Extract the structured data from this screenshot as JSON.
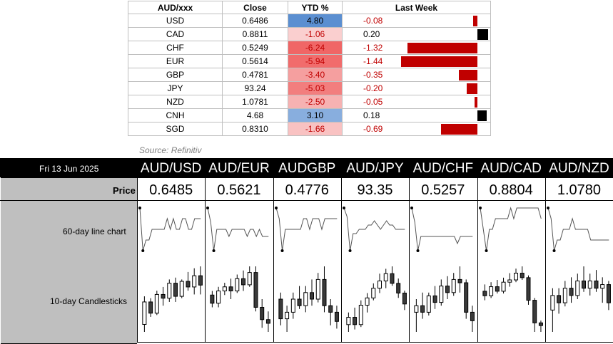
{
  "table": {
    "headers": [
      "AUD/xxx",
      "Close",
      "YTD %",
      "Last Week"
    ],
    "rows": [
      {
        "ccy": "USD",
        "close": "0.6486",
        "ytd": "4.80",
        "ytd_num": 4.8,
        "last_week": "-0.08",
        "lw_num": -0.08
      },
      {
        "ccy": "CAD",
        "close": "0.8811",
        "ytd": "-1.06",
        "ytd_num": -1.06,
        "last_week": "0.20",
        "lw_num": 0.2
      },
      {
        "ccy": "CHF",
        "close": "0.5249",
        "ytd": "-6.24",
        "ytd_num": -6.24,
        "last_week": "-1.32",
        "lw_num": -1.32
      },
      {
        "ccy": "EUR",
        "close": "0.5614",
        "ytd": "-5.94",
        "ytd_num": -5.94,
        "last_week": "-1.44",
        "lw_num": -1.44
      },
      {
        "ccy": "GBP",
        "close": "0.4781",
        "ytd": "-3.40",
        "ytd_num": -3.4,
        "last_week": "-0.35",
        "lw_num": -0.35
      },
      {
        "ccy": "JPY",
        "close": "93.24",
        "ytd": "-5.03",
        "ytd_num": -5.03,
        "last_week": "-0.20",
        "lw_num": -0.2
      },
      {
        "ccy": "NZD",
        "close": "1.0781",
        "ytd": "-2.50",
        "ytd_num": -2.5,
        "last_week": "-0.05",
        "lw_num": -0.05
      },
      {
        "ccy": "CNH",
        "close": "4.68",
        "ytd": "3.10",
        "ytd_num": 3.1,
        "last_week": "0.18",
        "lw_num": 0.18
      },
      {
        "ccy": "SGD",
        "close": "0.8310",
        "ytd": "-1.66",
        "ytd_num": -1.66,
        "last_week": "-0.69",
        "lw_num": -0.69
      }
    ]
  },
  "source": "Source: Refinitiv",
  "date": "Fri 13 Jun 2025",
  "labels": {
    "price": "Price",
    "line": "60-day line chart",
    "candles": "10-day Candlesticks"
  },
  "pairs": [
    {
      "name": "AUD/USD",
      "price": "0.6485"
    },
    {
      "name": "AUD/EUR",
      "price": "0.5621"
    },
    {
      "name": "AUDGBP",
      "price": "0.4776"
    },
    {
      "name": "AUD/JPY",
      "price": "93.35"
    },
    {
      "name": "AUD/CHF",
      "price": "0.5257"
    },
    {
      "name": "AUD/CAD",
      "price": "0.8804"
    },
    {
      "name": "AUD/NZD",
      "price": "1.0780"
    }
  ],
  "colors": {
    "positive_ytd": "#5b8fd1",
    "negative_ytd": "#f06666",
    "negative_bar": "#c00000",
    "positive_bar": "#000000",
    "negative_text": "#c00000"
  },
  "chart_data": [
    {
      "type": "table",
      "title": "",
      "columns": [
        "AUD/xxx",
        "Close",
        "YTD %",
        "Last Week"
      ],
      "categories": [
        "USD",
        "CAD",
        "CHF",
        "EUR",
        "GBP",
        "JPY",
        "NZD",
        "CNH",
        "SGD"
      ],
      "series": [
        {
          "name": "YTD %",
          "values": [
            4.8,
            -1.06,
            -6.24,
            -5.94,
            -3.4,
            -5.03,
            -2.5,
            3.1,
            -1.66
          ]
        },
        {
          "name": "Last Week",
          "values": [
            -0.08,
            0.2,
            -1.32,
            -1.44,
            -0.35,
            -0.2,
            -0.05,
            0.18,
            -0.69
          ]
        }
      ]
    },
    {
      "type": "line",
      "title": "",
      "series": [
        {
          "name": "AUD/USD",
          "values": [
            0.66,
            0.62,
            0.63,
            0.63,
            0.64,
            0.64,
            0.64,
            0.64,
            0.64,
            0.65,
            0.64,
            0.65,
            0.64,
            0.64,
            0.65,
            0.65,
            0.64,
            0.64,
            0.65,
            0.65,
            0.65
          ]
        },
        {
          "name": "AUD/EUR",
          "values": [
            0.6,
            0.58,
            0.54,
            0.57,
            0.57,
            0.57,
            0.57,
            0.56,
            0.57,
            0.57,
            0.57,
            0.57,
            0.57,
            0.56,
            0.57,
            0.57,
            0.56,
            0.57,
            0.56,
            0.56,
            0.56
          ]
        },
        {
          "name": "AUDGBP",
          "values": [
            0.49,
            0.48,
            0.45,
            0.47,
            0.47,
            0.47,
            0.47,
            0.47,
            0.47,
            0.48,
            0.48,
            0.47,
            0.48,
            0.48,
            0.48,
            0.47,
            0.48,
            0.48,
            0.48,
            0.48,
            0.48
          ]
        },
        {
          "name": "AUD/JPY",
          "values": [
            98,
            96,
            88,
            92,
            92,
            93,
            93,
            93,
            94,
            94,
            95,
            94,
            93,
            94,
            95,
            94,
            94,
            93,
            93,
            93,
            93
          ]
        },
        {
          "name": "AUD/CHF",
          "values": [
            0.57,
            0.55,
            0.51,
            0.53,
            0.53,
            0.53,
            0.53,
            0.53,
            0.53,
            0.53,
            0.53,
            0.53,
            0.53,
            0.53,
            0.53,
            0.52,
            0.53,
            0.53,
            0.53,
            0.53,
            0.53
          ]
        },
        {
          "name": "AUD/CAD",
          "values": [
            0.89,
            0.87,
            0.85,
            0.87,
            0.87,
            0.88,
            0.88,
            0.88,
            0.88,
            0.88,
            0.89,
            0.88,
            0.89,
            0.89,
            0.89,
            0.89,
            0.89,
            0.89,
            0.89,
            0.89,
            0.88
          ]
        },
        {
          "name": "AUD/NZD",
          "values": [
            1.11,
            1.1,
            1.07,
            1.08,
            1.08,
            1.09,
            1.09,
            1.09,
            1.1,
            1.09,
            1.09,
            1.09,
            1.09,
            1.09,
            1.08,
            1.08,
            1.08,
            1.08,
            1.08,
            1.08,
            1.08
          ]
        }
      ]
    },
    {
      "type": "candlestick",
      "title": "",
      "series": [
        {
          "name": "AUD/USD",
          "candles": [
            {
              "o": 0.638,
              "h": 0.6455,
              "l": 0.636,
              "c": 0.644
            },
            {
              "o": 0.644,
              "h": 0.645,
              "l": 0.64,
              "c": 0.641
            },
            {
              "o": 0.641,
              "h": 0.647,
              "l": 0.6405,
              "c": 0.646
            },
            {
              "o": 0.646,
              "h": 0.648,
              "l": 0.643,
              "c": 0.645
            },
            {
              "o": 0.645,
              "h": 0.65,
              "l": 0.644,
              "c": 0.649
            },
            {
              "o": 0.649,
              "h": 0.6505,
              "l": 0.644,
              "c": 0.6455
            },
            {
              "o": 0.6455,
              "h": 0.65,
              "l": 0.645,
              "c": 0.6495
            },
            {
              "o": 0.6495,
              "h": 0.652,
              "l": 0.647,
              "c": 0.648
            },
            {
              "o": 0.648,
              "h": 0.653,
              "l": 0.646,
              "c": 0.651
            },
            {
              "o": 0.651,
              "h": 0.6535,
              "l": 0.646,
              "c": 0.6485
            }
          ]
        },
        {
          "name": "AUD/EUR",
          "candles": [
            {
              "o": 0.569,
              "h": 0.57,
              "l": 0.566,
              "c": 0.567
            },
            {
              "o": 0.567,
              "h": 0.571,
              "l": 0.566,
              "c": 0.57
            },
            {
              "o": 0.57,
              "h": 0.572,
              "l": 0.569,
              "c": 0.571
            },
            {
              "o": 0.571,
              "h": 0.573,
              "l": 0.568,
              "c": 0.57
            },
            {
              "o": 0.57,
              "h": 0.574,
              "l": 0.5695,
              "c": 0.573
            },
            {
              "o": 0.573,
              "h": 0.575,
              "l": 0.57,
              "c": 0.5715
            },
            {
              "o": 0.5715,
              "h": 0.576,
              "l": 0.571,
              "c": 0.5745
            },
            {
              "o": 0.5745,
              "h": 0.576,
              "l": 0.565,
              "c": 0.566
            },
            {
              "o": 0.566,
              "h": 0.568,
              "l": 0.561,
              "c": 0.563
            },
            {
              "o": 0.563,
              "h": 0.565,
              "l": 0.56,
              "c": 0.5621
            }
          ]
        },
        {
          "name": "AUDGBP",
          "candles": [
            {
              "o": 0.481,
              "h": 0.482,
              "l": 0.477,
              "c": 0.478
            },
            {
              "o": 0.478,
              "h": 0.48,
              "l": 0.476,
              "c": 0.479
            },
            {
              "o": 0.479,
              "h": 0.482,
              "l": 0.478,
              "c": 0.481
            },
            {
              "o": 0.481,
              "h": 0.483,
              "l": 0.4795,
              "c": 0.48
            },
            {
              "o": 0.48,
              "h": 0.483,
              "l": 0.479,
              "c": 0.482
            },
            {
              "o": 0.482,
              "h": 0.484,
              "l": 0.48,
              "c": 0.481
            },
            {
              "o": 0.481,
              "h": 0.485,
              "l": 0.4805,
              "c": 0.484
            },
            {
              "o": 0.484,
              "h": 0.486,
              "l": 0.479,
              "c": 0.48
            },
            {
              "o": 0.48,
              "h": 0.481,
              "l": 0.477,
              "c": 0.479
            },
            {
              "o": 0.479,
              "h": 0.48,
              "l": 0.4765,
              "c": 0.4776
            }
          ]
        },
        {
          "name": "AUD/JPY",
          "candles": [
            {
              "o": 92.5,
              "h": 93.0,
              "l": 92.2,
              "c": 92.8
            },
            {
              "o": 92.8,
              "h": 93.2,
              "l": 92.3,
              "c": 92.5
            },
            {
              "o": 92.5,
              "h": 93.5,
              "l": 92.4,
              "c": 93.3
            },
            {
              "o": 93.3,
              "h": 93.8,
              "l": 93.0,
              "c": 93.6
            },
            {
              "o": 93.6,
              "h": 94.2,
              "l": 93.5,
              "c": 94.0
            },
            {
              "o": 94.0,
              "h": 94.6,
              "l": 93.8,
              "c": 94.3
            },
            {
              "o": 94.3,
              "h": 94.8,
              "l": 94.0,
              "c": 94.6
            },
            {
              "o": 94.6,
              "h": 94.9,
              "l": 94.1,
              "c": 94.2
            },
            {
              "o": 94.2,
              "h": 94.4,
              "l": 93.6,
              "c": 93.8
            },
            {
              "o": 93.8,
              "h": 93.9,
              "l": 93.1,
              "c": 93.35
            }
          ]
        },
        {
          "name": "AUD/CHF",
          "candles": [
            {
              "o": 0.527,
              "h": 0.529,
              "l": 0.524,
              "c": 0.528
            },
            {
              "o": 0.528,
              "h": 0.53,
              "l": 0.526,
              "c": 0.527
            },
            {
              "o": 0.527,
              "h": 0.53,
              "l": 0.5265,
              "c": 0.5295
            },
            {
              "o": 0.5295,
              "h": 0.531,
              "l": 0.5275,
              "c": 0.5285
            },
            {
              "o": 0.5285,
              "h": 0.532,
              "l": 0.528,
              "c": 0.531
            },
            {
              "o": 0.531,
              "h": 0.5325,
              "l": 0.529,
              "c": 0.53
            },
            {
              "o": 0.53,
              "h": 0.533,
              "l": 0.5295,
              "c": 0.532
            },
            {
              "o": 0.532,
              "h": 0.534,
              "l": 0.53,
              "c": 0.5315
            },
            {
              "o": 0.5315,
              "h": 0.532,
              "l": 0.526,
              "c": 0.527
            },
            {
              "o": 0.527,
              "h": 0.528,
              "l": 0.524,
              "c": 0.5257
            }
          ]
        },
        {
          "name": "AUD/CAD",
          "candles": [
            {
              "o": 0.888,
              "h": 0.8895,
              "l": 0.886,
              "c": 0.887
            },
            {
              "o": 0.887,
              "h": 0.89,
              "l": 0.8865,
              "c": 0.889
            },
            {
              "o": 0.889,
              "h": 0.8905,
              "l": 0.8875,
              "c": 0.888
            },
            {
              "o": 0.888,
              "h": 0.891,
              "l": 0.8875,
              "c": 0.89
            },
            {
              "o": 0.89,
              "h": 0.892,
              "l": 0.889,
              "c": 0.8905
            },
            {
              "o": 0.8905,
              "h": 0.893,
              "l": 0.89,
              "c": 0.892
            },
            {
              "o": 0.892,
              "h": 0.8935,
              "l": 0.8905,
              "c": 0.891
            },
            {
              "o": 0.891,
              "h": 0.8915,
              "l": 0.885,
              "c": 0.886
            },
            {
              "o": 0.886,
              "h": 0.8865,
              "l": 0.879,
              "c": 0.881
            },
            {
              "o": 0.881,
              "h": 0.8815,
              "l": 0.879,
              "c": 0.8804
            }
          ]
        },
        {
          "name": "AUD/NZD",
          "candles": [
            {
              "o": 1.077,
              "h": 1.08,
              "l": 1.074,
              "c": 1.079
            },
            {
              "o": 1.079,
              "h": 1.08,
              "l": 1.0765,
              "c": 1.078
            },
            {
              "o": 1.078,
              "h": 1.081,
              "l": 1.0775,
              "c": 1.08
            },
            {
              "o": 1.08,
              "h": 1.0815,
              "l": 1.078,
              "c": 1.079
            },
            {
              "o": 1.079,
              "h": 1.082,
              "l": 1.0785,
              "c": 1.081
            },
            {
              "o": 1.081,
              "h": 1.083,
              "l": 1.0795,
              "c": 1.08
            },
            {
              "o": 1.08,
              "h": 1.082,
              "l": 1.079,
              "c": 1.081
            },
            {
              "o": 1.081,
              "h": 1.0825,
              "l": 1.0795,
              "c": 1.08
            },
            {
              "o": 1.08,
              "h": 1.0815,
              "l": 1.078,
              "c": 1.0805
            },
            {
              "o": 1.0805,
              "h": 1.081,
              "l": 1.077,
              "c": 1.078
            }
          ]
        }
      ]
    }
  ]
}
